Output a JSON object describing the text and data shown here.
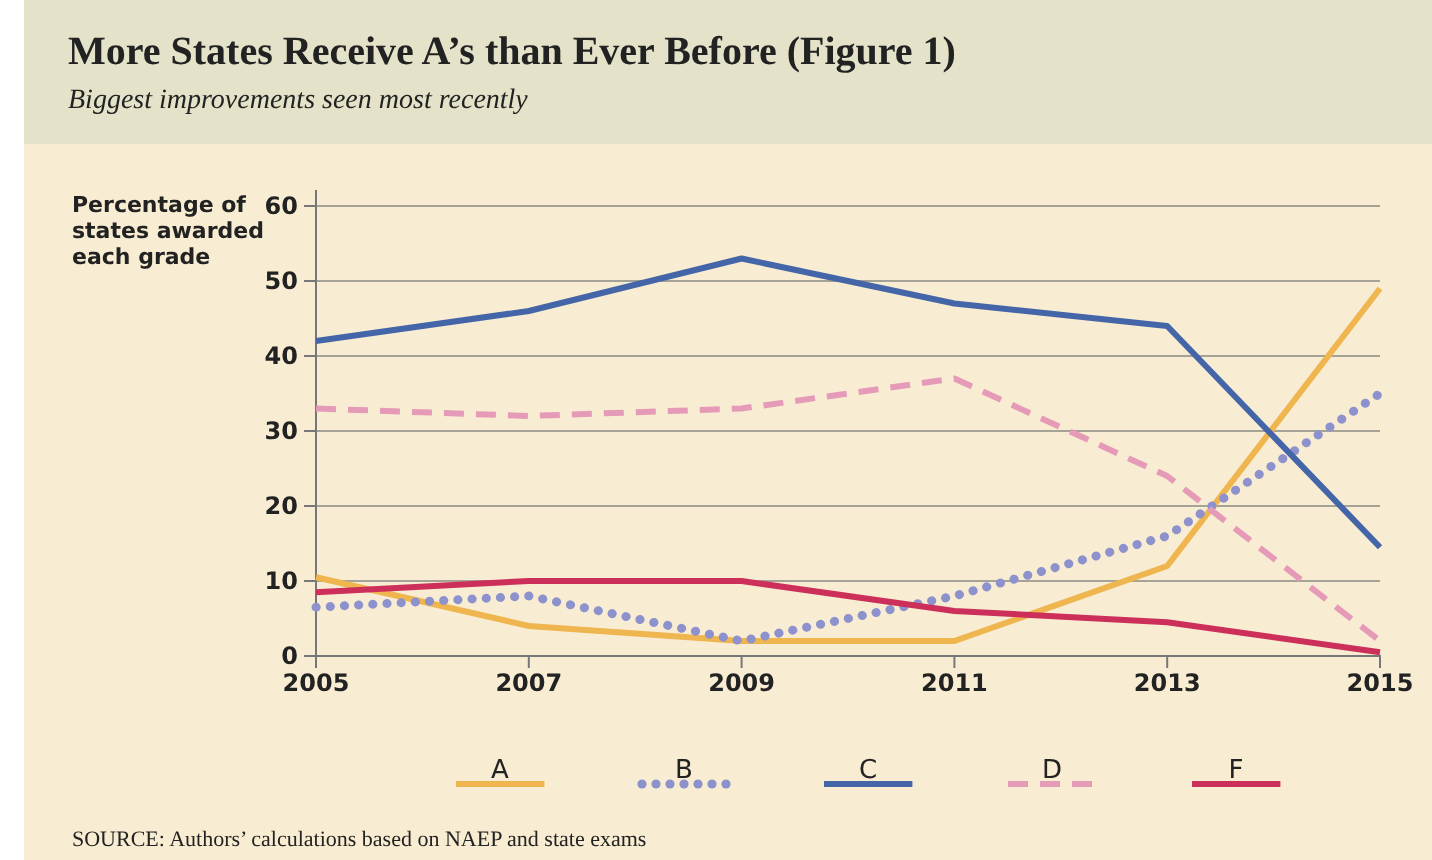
{
  "chart_data": {
    "type": "line",
    "title": "More States Receive A’s than Ever Before (Figure 1)",
    "subtitle": "Biggest improvements seen most recently",
    "ylabel": "Percentage of states awarded each grade",
    "annotations": [
      "SOURCE: Authors’ calculations based on NAEP and state exams"
    ],
    "x": [
      2005,
      2007,
      2009,
      2011,
      2013,
      2015
    ],
    "xlim": [
      2005,
      2015
    ],
    "xticks": [
      2005,
      2007,
      2009,
      2011,
      2013,
      2015
    ],
    "ylim": [
      0,
      60
    ],
    "yticks": [
      0,
      10,
      20,
      30,
      40,
      50,
      60
    ],
    "grid": "y",
    "legend": "bottom",
    "series": [
      {
        "name": "A",
        "color": "#efb54f",
        "line_style": "solid",
        "values": [
          10.5,
          4,
          2,
          2,
          12,
          49
        ]
      },
      {
        "name": "B",
        "color": "#8d92cc",
        "line_style": "dotted",
        "values": [
          6.5,
          8,
          2,
          8,
          16,
          35
        ]
      },
      {
        "name": "C",
        "color": "#4466a8",
        "line_style": "solid",
        "values": [
          42,
          46,
          53,
          47,
          44,
          14.5
        ]
      },
      {
        "name": "D",
        "color": "#e59bb7",
        "line_style": "dashed",
        "values": [
          33,
          32,
          33,
          37,
          24,
          2
        ]
      },
      {
        "name": "F",
        "color": "#cc2f5a",
        "line_style": "solid",
        "values": [
          8.5,
          10,
          10,
          6,
          4.5,
          0.5
        ]
      }
    ]
  }
}
